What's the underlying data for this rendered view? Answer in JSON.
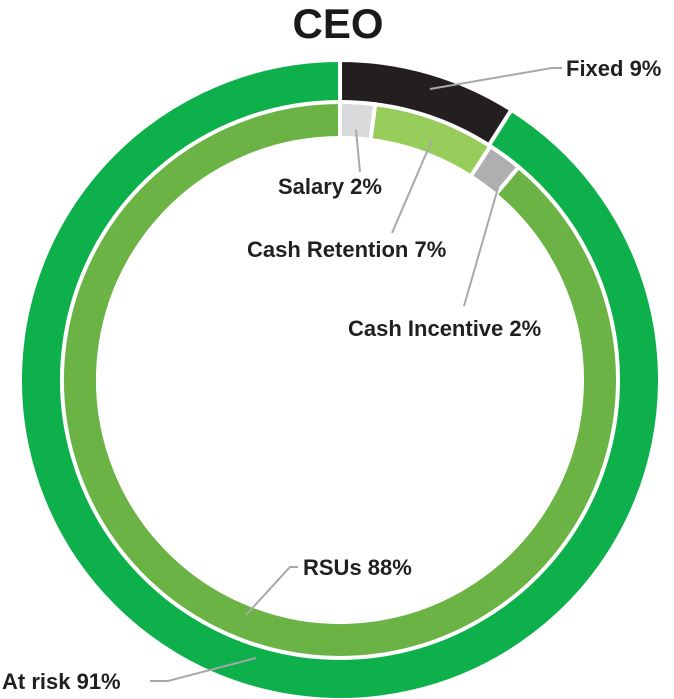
{
  "chart_data": {
    "type": "pie",
    "subtype": "nested-donut",
    "title": "CEO",
    "rings": [
      {
        "name": "outer",
        "slices": [
          {
            "label": "Fixed 9%",
            "value": 9,
            "color": "#231f20"
          },
          {
            "label": "At risk 91%",
            "value": 91,
            "color": "#0db04b"
          }
        ]
      },
      {
        "name": "inner",
        "slices": [
          {
            "label": "Salary 2%",
            "value": 2,
            "color": "#d9dadb"
          },
          {
            "label": "Cash Retention 7%",
            "value": 7,
            "color": "#96cd5a"
          },
          {
            "label": "Cash Incentive 2%",
            "value": 2,
            "color": "#aeafb0"
          },
          {
            "label": "RSUs 88%",
            "value": 88,
            "color": "#6ab344"
          }
        ]
      }
    ],
    "legend": "none",
    "grid": false
  }
}
